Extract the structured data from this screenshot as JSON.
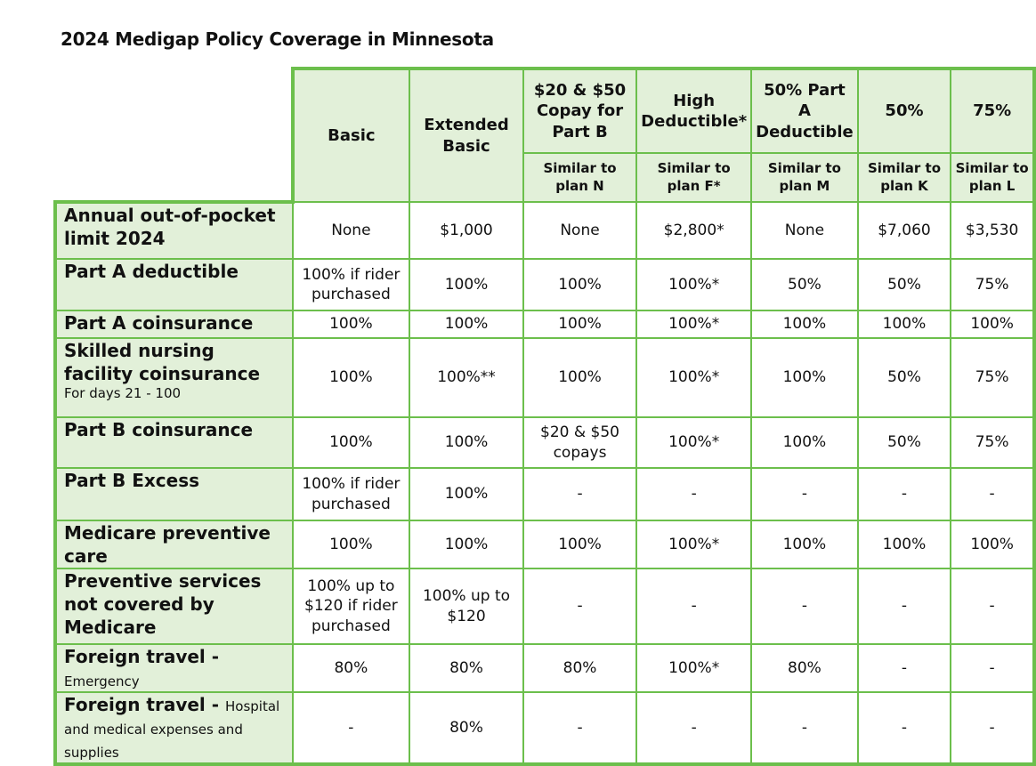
{
  "title": "2024 Medigap Policy Coverage in Minnesota",
  "table": {
    "columns": [
      {
        "name": "Basic"
      },
      {
        "name": "Extended Basic"
      },
      {
        "name": "$20 & $50 Copay for Part B",
        "similar": "Similar to plan N"
      },
      {
        "name": "High Deductible*",
        "similar": "Similar to plan F*"
      },
      {
        "name": "50% Part A Deductible",
        "similar": "Similar to plan M"
      },
      {
        "name": "50%",
        "similar": "Similar to plan K"
      },
      {
        "name": "75%",
        "similar": "Similar to plan L"
      }
    ],
    "rows": [
      {
        "label": "Annual out-of-pocket limit 2024",
        "cells": [
          "None",
          "$1,000",
          "None",
          "$2,800*",
          "None",
          "$7,060",
          "$3,530"
        ]
      },
      {
        "label": "Part A deductible",
        "cells": [
          "100% if rider purchased",
          "100%",
          "100%",
          "100%*",
          "50%",
          "50%",
          "75%"
        ]
      },
      {
        "label": "Part A coinsurance",
        "cells": [
          "100%",
          "100%",
          "100%",
          "100%*",
          "100%",
          "100%",
          "100%"
        ]
      },
      {
        "label": "Skilled nursing facility coinsurance",
        "note": "For days 21 - 100",
        "cells": [
          "100%",
          "100%**",
          "100%",
          "100%*",
          "100%",
          "50%",
          "75%"
        ]
      },
      {
        "label": "Part B coinsurance",
        "cells": [
          "100%",
          "100%",
          "$20 & $50 copays",
          "100%*",
          "100%",
          "50%",
          "75%"
        ]
      },
      {
        "label": "Part B Excess",
        "cells": [
          "100% if rider purchased",
          "100%",
          "-",
          "-",
          "-",
          "-",
          "-"
        ]
      },
      {
        "label": "Medicare preventive care",
        "cells": [
          "100%",
          "100%",
          "100%",
          "100%*",
          "100%",
          "100%",
          "100%"
        ]
      },
      {
        "label": "Preventive services not covered by Medicare",
        "cells": [
          "100% up to $120 if rider purchased",
          "100% up to $120",
          "-",
          "-",
          "-",
          "-",
          "-"
        ]
      },
      {
        "label": "Foreign travel -",
        "note": "Emergency",
        "cells": [
          "80%",
          "80%",
          "80%",
          "100%*",
          "80%",
          "-",
          "-"
        ]
      },
      {
        "label": "Foreign travel -",
        "note": "Hospital and medical expenses and supplies",
        "cells": [
          "-",
          "80%",
          "-",
          "-",
          "-",
          "-",
          "-"
        ]
      }
    ]
  }
}
